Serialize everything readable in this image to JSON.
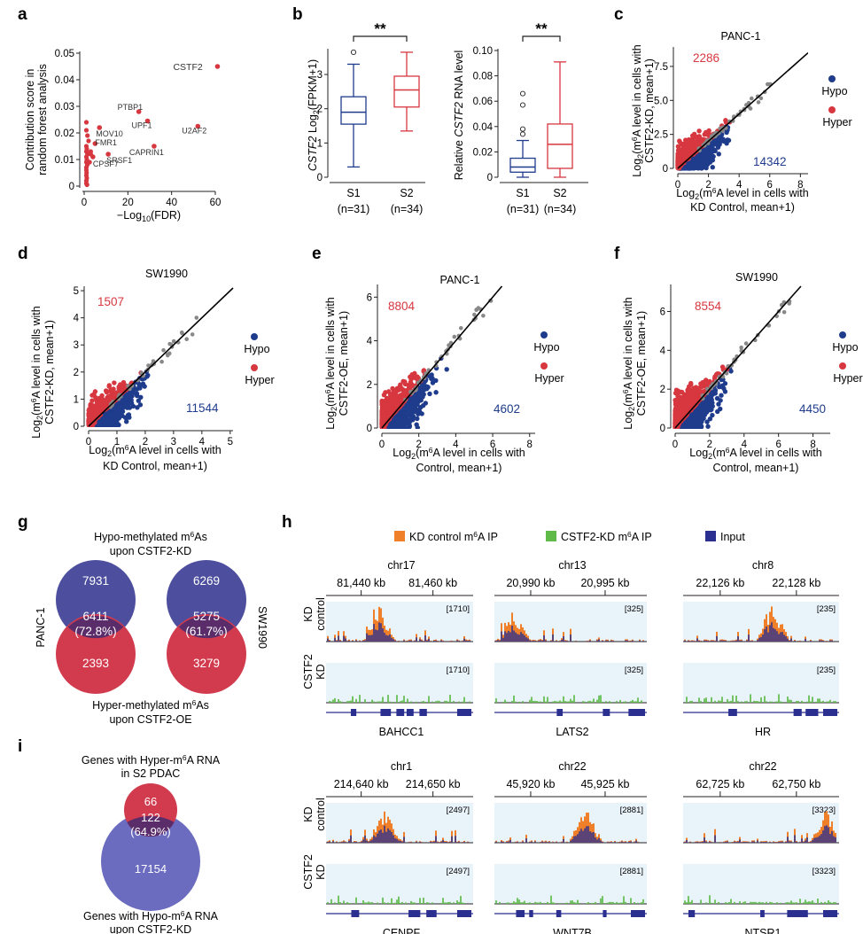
{
  "colors": {
    "red": "#d7373f",
    "blue": "#1f3c8c",
    "grey": "#888888",
    "orange": "#f07f2a",
    "green": "#5fba4a",
    "navy": "#2b2f8f",
    "hypo_circle": "#4d4f9e",
    "hyper_circle": "#d23a4e",
    "overlap": "#5a2d6a",
    "track_bg": "#e9f3fa"
  },
  "panels": {
    "a": {
      "letter": "a",
      "ylabel1": "Contribution score in",
      "ylabel2": "random forest analysis",
      "xlabel": "−Log",
      "xlabel_sub": "10",
      "xlabel_end": "(FDR)"
    },
    "b": {
      "letter": "b",
      "left_ylabel_italic": "CSTF2",
      "left_ylabel_rest": " Log",
      "left_ylabel_sub": "2",
      "left_ylabel_end": "(FPKM+1)",
      "right_ylabel_pre": "Relative ",
      "right_ylabel_italic": "CSTF2",
      "right_ylabel_end": " RNA level",
      "sig": "**",
      "g1": "S1",
      "g2": "S2",
      "n1": "(n=31)",
      "n2": "(n=34)"
    },
    "c": {
      "letter": "c",
      "title": "PANC-1",
      "ylab1": "Log",
      "ylab_sub": "2",
      "ylab_a": "(m",
      "ylab_sup": "6",
      "ylab_b": "A level in cells with",
      "ylab2": "CSTF2-KD, mean+1)",
      "xlab_a": "Log",
      "xlab_sub": "2",
      "xlab_b": "(m",
      "xlab_sup": "6",
      "xlab_c": "A level in cells with",
      "xlab2": "KD Control, mean+1)",
      "hyper_count": "2286",
      "hypo_count": "14342",
      "leg_hypo": "Hypo",
      "leg_hyper": "Hyper"
    },
    "d": {
      "letter": "d",
      "title": "SW1990",
      "ylab2": "CSTF2-KD, mean+1)",
      "xlab2": "KD Control, mean+1)",
      "hyper_count": "1507",
      "hypo_count": "11544",
      "leg_hypo": "Hypo",
      "leg_hyper": "Hyper"
    },
    "e": {
      "letter": "e",
      "title": "PANC-1",
      "ylab2": "CSTF2-OE, mean+1)",
      "xlab2": "Control, mean+1)",
      "hyper_count": "8804",
      "hypo_count": "4602",
      "leg_hypo": "Hypo",
      "leg_hyper": "Hyper"
    },
    "f": {
      "letter": "f",
      "title": "SW1990",
      "ylab2": "CSTF2-OE, mean+1)",
      "xlab2": "Control, mean+1)",
      "hyper_count": "8554",
      "hypo_count": "4450",
      "leg_hypo": "Hypo",
      "leg_hyper": "Hyper"
    },
    "g": {
      "letter": "g",
      "top1": "Hypo-methylated m",
      "top_sup": "6",
      "top1_end": "As",
      "top2": "upon CSTF2-KD",
      "bot1": "Hyper-methylated m",
      "bot_sup": "6",
      "bot1_end": "As",
      "bot2": "upon CSTF2-OE",
      "left_label": "PANC-1",
      "right_label": "SW1990",
      "p_top": "7931",
      "p_mid": "6411",
      "p_pct": "(72.8%)",
      "p_bot": "2393",
      "s_top": "6269",
      "s_mid": "5275",
      "s_pct": "(61.7%)",
      "s_bot": "3279"
    },
    "h": {
      "letter": "h",
      "leg1_a": "KD control m",
      "leg1_sup": "6",
      "leg1_b": "A IP",
      "leg2_a": "CSTF2-KD m",
      "leg2_sup": "6",
      "leg2_b": "A IP",
      "leg3": "Input",
      "row1": "KD",
      "row1b": "control",
      "row2": "CSTF2",
      "row2b": "KD"
    },
    "i": {
      "letter": "i",
      "top1": "Genes with Hyper-m",
      "top_sup": "6",
      "top1_end": "A RNA",
      "top2": "in S2 PDAC",
      "bot1": "Genes with Hypo-m",
      "bot_sup": "6",
      "bot1_end": "A RNA",
      "bot2": "upon CSTF2-KD",
      "n_top": "66",
      "n_mid": "122",
      "n_pct": "(64.9%)",
      "n_bot": "17154"
    }
  },
  "tracks": [
    {
      "chr": "chr17",
      "t1": "81,440 kb",
      "t2": "81,460 kb",
      "scale": "[1710]",
      "gene": "BAHCC1"
    },
    {
      "chr": "chr13",
      "t1": "20,990 kb",
      "t2": "20,995 kb",
      "scale": "[325]",
      "gene": "LATS2"
    },
    {
      "chr": "chr8",
      "t1": "22,126 kb",
      "t2": "22,128 kb",
      "scale": "[235]",
      "gene": "HR"
    },
    {
      "chr": "chr1",
      "t1": "214,640 kb",
      "t2": "214,650 kb",
      "scale": "[2497]",
      "gene": "CENPF"
    },
    {
      "chr": "chr22",
      "t1": "45,920 kb",
      "t2": "45,925 kb",
      "scale": "[2881]",
      "gene": "WNT7B"
    },
    {
      "chr": "chr22",
      "t1": "62,725 kb",
      "t2": "62,750 kb",
      "scale": "[3323]",
      "gene": "NTSR1"
    }
  ],
  "chart_data": [
    {
      "panel": "a",
      "type": "scatter",
      "xlim": [
        0,
        60
      ],
      "ylim": [
        0,
        0.05
      ],
      "xticks": [
        "0",
        "20",
        "40",
        "60"
      ],
      "yticks": [
        "0",
        "0.01",
        "0.02",
        "0.03",
        "0.04",
        "0.05"
      ],
      "labeled_points": [
        {
          "label": "CSTF2",
          "x": 61,
          "y": 0.045
        },
        {
          "label": "PTBP1",
          "x": 25,
          "y": 0.028
        },
        {
          "label": "UPF1",
          "x": 29,
          "y": 0.0245
        },
        {
          "label": "U2AF2",
          "x": 52,
          "y": 0.0225
        },
        {
          "label": "MOV10",
          "x": 7,
          "y": 0.022
        },
        {
          "label": "CAPRIN1",
          "x": 32,
          "y": 0.015
        },
        {
          "label": "FMR1",
          "x": 5,
          "y": 0.016
        },
        {
          "label": "SRSF1",
          "x": 11,
          "y": 0.012
        },
        {
          "label": "CPSF7",
          "x": 4,
          "y": 0.011
        }
      ],
      "other_points": [
        {
          "x": 1,
          "y": 0.024
        },
        {
          "x": 1,
          "y": 0.021
        },
        {
          "x": 1.5,
          "y": 0.019
        },
        {
          "x": 2,
          "y": 0.017
        },
        {
          "x": 1,
          "y": 0.015
        },
        {
          "x": 1.2,
          "y": 0.014
        },
        {
          "x": 1,
          "y": 0.013
        },
        {
          "x": 1.5,
          "y": 0.012
        },
        {
          "x": 1,
          "y": 0.011
        },
        {
          "x": 1.2,
          "y": 0.01
        },
        {
          "x": 1,
          "y": 0.009
        },
        {
          "x": 1.4,
          "y": 0.008
        },
        {
          "x": 1,
          "y": 0.007
        },
        {
          "x": 1,
          "y": 0.006
        },
        {
          "x": 1.1,
          "y": 0.005
        },
        {
          "x": 1,
          "y": 0.004
        },
        {
          "x": 1.2,
          "y": 0.003
        },
        {
          "x": 1,
          "y": 0.002
        },
        {
          "x": 1,
          "y": 0.001
        },
        {
          "x": 1.3,
          "y": 0.0005
        },
        {
          "x": 3,
          "y": 0.013
        },
        {
          "x": 2.5,
          "y": 0.009
        },
        {
          "x": 3,
          "y": 0.012
        }
      ]
    },
    {
      "panel": "b-left",
      "type": "box",
      "ylim": [
        0,
        3.7
      ],
      "yticks": [
        "0",
        "1",
        "2",
        "3"
      ],
      "categories": [
        "S1",
        "S2"
      ],
      "boxes": [
        {
          "name": "S1",
          "min": 0.3,
          "q1": 1.55,
          "median": 1.9,
          "q3": 2.35,
          "max": 3.3,
          "outliers": [
            3.65
          ]
        },
        {
          "name": "S2",
          "min": 1.35,
          "q1": 2.05,
          "median": 2.55,
          "q3": 2.95,
          "max": 3.65,
          "outliers": []
        }
      ]
    },
    {
      "panel": "b-right",
      "type": "box",
      "ylim": [
        0,
        0.1
      ],
      "yticks": [
        "0",
        "0.02",
        "0.04",
        "0.06",
        "0.08",
        "0.10"
      ],
      "categories": [
        "S1",
        "S2"
      ],
      "boxes": [
        {
          "name": "S1",
          "min": 0.0,
          "q1": 0.004,
          "median": 0.008,
          "q3": 0.015,
          "max": 0.029,
          "outliers": [
            0.034,
            0.038,
            0.057,
            0.066
          ]
        },
        {
          "name": "S2",
          "min": 0.0,
          "q1": 0.007,
          "median": 0.026,
          "q3": 0.042,
          "max": 0.091,
          "outliers": []
        }
      ]
    },
    {
      "panel": "c",
      "type": "scatter",
      "xlim": [
        0,
        8.5
      ],
      "ylim": [
        0,
        8.8
      ],
      "xticks": [
        "0",
        "2",
        "4",
        "6",
        "8"
      ],
      "yticks": [
        "0",
        "2.5",
        "5.0",
        "7.5"
      ]
    },
    {
      "panel": "d",
      "type": "scatter",
      "xlim": [
        0,
        5.1
      ],
      "ylim": [
        0,
        5.1
      ],
      "xticks": [
        "0",
        "1",
        "2",
        "3",
        "4",
        "5"
      ],
      "yticks": [
        "0",
        "1",
        "2",
        "3",
        "4",
        "5"
      ]
    },
    {
      "panel": "e",
      "type": "scatter",
      "xlim": [
        0,
        8.3
      ],
      "ylim": [
        0,
        6.5
      ],
      "xticks": [
        "0",
        "2",
        "4",
        "6",
        "8"
      ],
      "yticks": [
        "0",
        "2",
        "4",
        "6"
      ]
    },
    {
      "panel": "f",
      "type": "scatter",
      "xlim": [
        0,
        9
      ],
      "ylim": [
        0,
        7.3
      ],
      "xticks": [
        "0",
        "2",
        "4",
        "6",
        "8"
      ],
      "yticks": [
        "0",
        "2",
        "4",
        "6"
      ]
    }
  ]
}
